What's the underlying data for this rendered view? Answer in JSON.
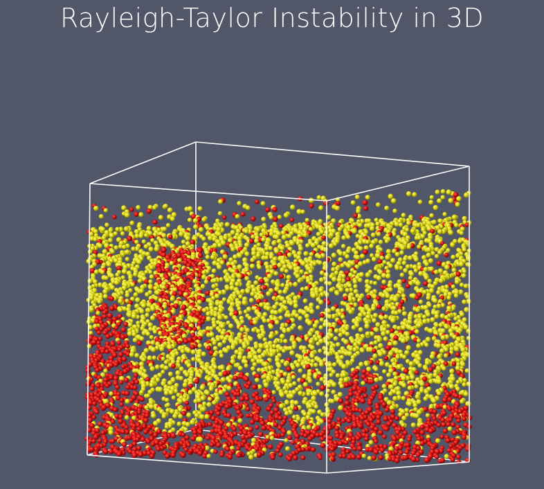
{
  "title": "Rayleigh-Taylor Instability in 3D",
  "colors": {
    "background": "#525669",
    "heavy_fluid": "#d40f0f",
    "light_fluid": "#d9d40e",
    "box_outline": "#ffffff"
  }
}
